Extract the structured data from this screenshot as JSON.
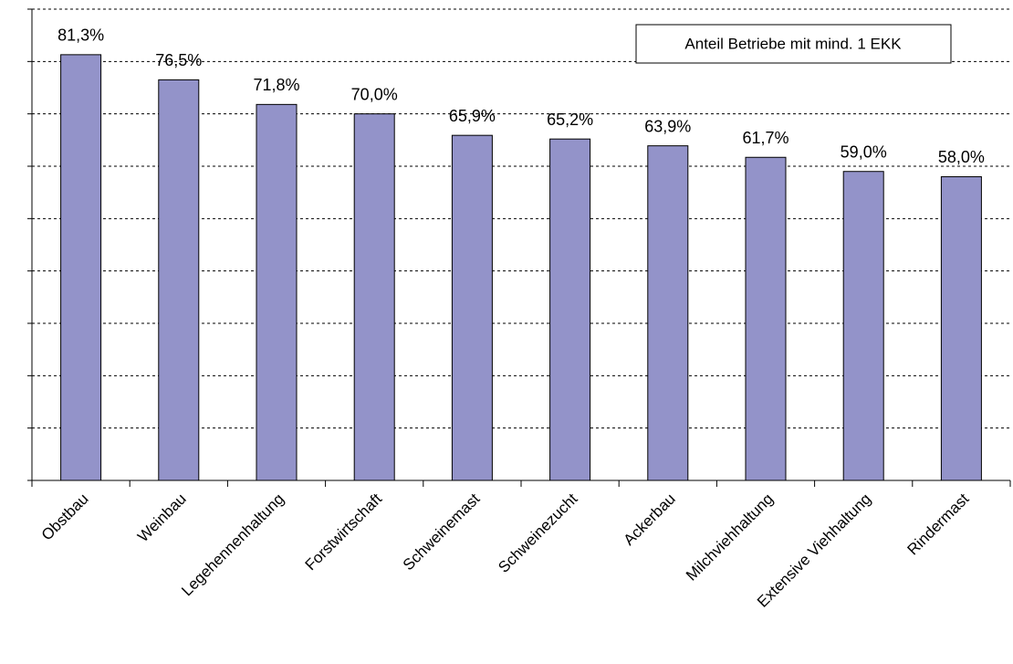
{
  "chart_data": {
    "type": "bar",
    "categories": [
      "Obstbau",
      "Weinbau",
      "Legehennenhaltung",
      "Forstwirtschaft",
      "Schweinemast",
      "Schweinezucht",
      "Ackerbau",
      "Milchviehhaltung",
      "Extensive Viehhaltung",
      "Rindermast"
    ],
    "series": [
      {
        "name": "Anteil Betriebe mit mind. 1 EKK",
        "color": "#9393c9",
        "values": [
          81.3,
          76.5,
          71.8,
          70.0,
          65.9,
          65.2,
          63.9,
          61.7,
          59.0,
          58.0
        ],
        "value_labels": [
          "81,3%",
          "76,5%",
          "71,8%",
          "70,0%",
          "65,9%",
          "65,2%",
          "63,9%",
          "61,7%",
          "59,0%",
          "58,0%"
        ]
      }
    ],
    "ylim": [
      0,
      90
    ],
    "yticks": [
      0,
      10,
      20,
      30,
      40,
      50,
      60,
      70,
      80,
      90
    ],
    "grid": true,
    "legend": "upper right"
  }
}
